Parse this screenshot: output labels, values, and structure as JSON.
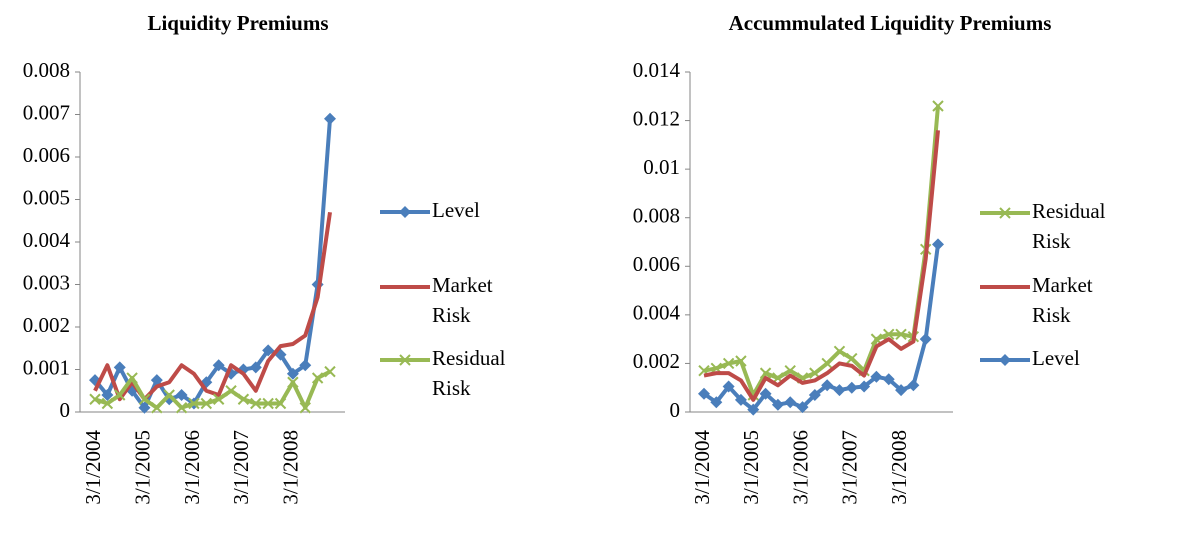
{
  "chart_data": [
    {
      "type": "line",
      "title": "Liquidity Premiums",
      "categories": [
        "3/1/2004",
        null,
        null,
        null,
        "3/1/2005",
        null,
        null,
        null,
        "3/1/2006",
        null,
        null,
        null,
        "3/1/2007",
        null,
        null,
        null,
        "3/1/2008",
        null,
        null,
        null
      ],
      "series": [
        {
          "name": "Level",
          "color": "#4a7ebb",
          "marker": "diamond",
          "values": [
            0.00075,
            0.0004,
            0.00105,
            0.0005,
            0.0001,
            0.00075,
            0.0003,
            0.0004,
            0.0002,
            0.0007,
            0.0011,
            0.0009,
            0.001,
            0.00105,
            0.00145,
            0.00135,
            0.0009,
            0.0011,
            0.003,
            0.0069
          ]
        },
        {
          "name": "Market Risk",
          "color": "#be4b48",
          "marker": "none",
          "values": [
            0.0005,
            0.0011,
            0.0003,
            0.0007,
            0.0003,
            0.0006,
            0.0007,
            0.0011,
            0.0009,
            0.0005,
            0.0004,
            0.0011,
            0.0009,
            0.0005,
            0.0012,
            0.00155,
            0.0016,
            0.0018,
            0.0027,
            0.0047
          ]
        },
        {
          "name": "Residual Risk",
          "color": "#98b954",
          "marker": "x",
          "values": [
            0.0003,
            0.0002,
            0.0004,
            0.0008,
            0.0003,
            0.0001,
            0.0004,
            0.0001,
            0.0002,
            0.0002,
            0.0003,
            0.0005,
            0.0003,
            0.0002,
            0.0002,
            0.0002,
            0.0007,
            0.0001,
            0.0008,
            0.00095
          ]
        }
      ],
      "ylim": [
        0,
        0.008
      ],
      "yticks": [
        0,
        0.001,
        0.002,
        0.003,
        0.004,
        0.005,
        0.006,
        0.007,
        0.008
      ],
      "legend": "right"
    },
    {
      "type": "line",
      "title": "Accummulated Liquidity Premiums",
      "categories": [
        "3/1/2004",
        null,
        null,
        null,
        "3/1/2005",
        null,
        null,
        null,
        "3/1/2006",
        null,
        null,
        null,
        "3/1/2007",
        null,
        null,
        null,
        "3/1/2008",
        null,
        null,
        null
      ],
      "series": [
        {
          "name": "Residual Risk",
          "color": "#98b954",
          "marker": "x",
          "values": [
            0.0017,
            0.0018,
            0.002,
            0.0021,
            0.0007,
            0.0016,
            0.0014,
            0.0017,
            0.0014,
            0.0016,
            0.002,
            0.0025,
            0.0022,
            0.0017,
            0.003,
            0.0032,
            0.0032,
            0.0031,
            0.0067,
            0.0126
          ]
        },
        {
          "name": "Market Risk",
          "color": "#be4b48",
          "marker": "none",
          "values": [
            0.0015,
            0.0016,
            0.0016,
            0.0013,
            0.0005,
            0.0014,
            0.0011,
            0.0015,
            0.0012,
            0.0013,
            0.0016,
            0.002,
            0.0019,
            0.0015,
            0.0027,
            0.003,
            0.0026,
            0.0029,
            0.0063,
            0.0116
          ]
        },
        {
          "name": "Level",
          "color": "#4a7ebb",
          "marker": "diamond",
          "values": [
            0.00075,
            0.0004,
            0.00105,
            0.0005,
            0.0001,
            0.00075,
            0.0003,
            0.0004,
            0.0002,
            0.0007,
            0.0011,
            0.0009,
            0.001,
            0.00105,
            0.00145,
            0.00135,
            0.0009,
            0.0011,
            0.003,
            0.0069
          ]
        }
      ],
      "ylim": [
        0,
        0.014
      ],
      "yticks": [
        0,
        0.002,
        0.004,
        0.006,
        0.008,
        0.01,
        0.012,
        0.014
      ],
      "legend": "right"
    }
  ]
}
